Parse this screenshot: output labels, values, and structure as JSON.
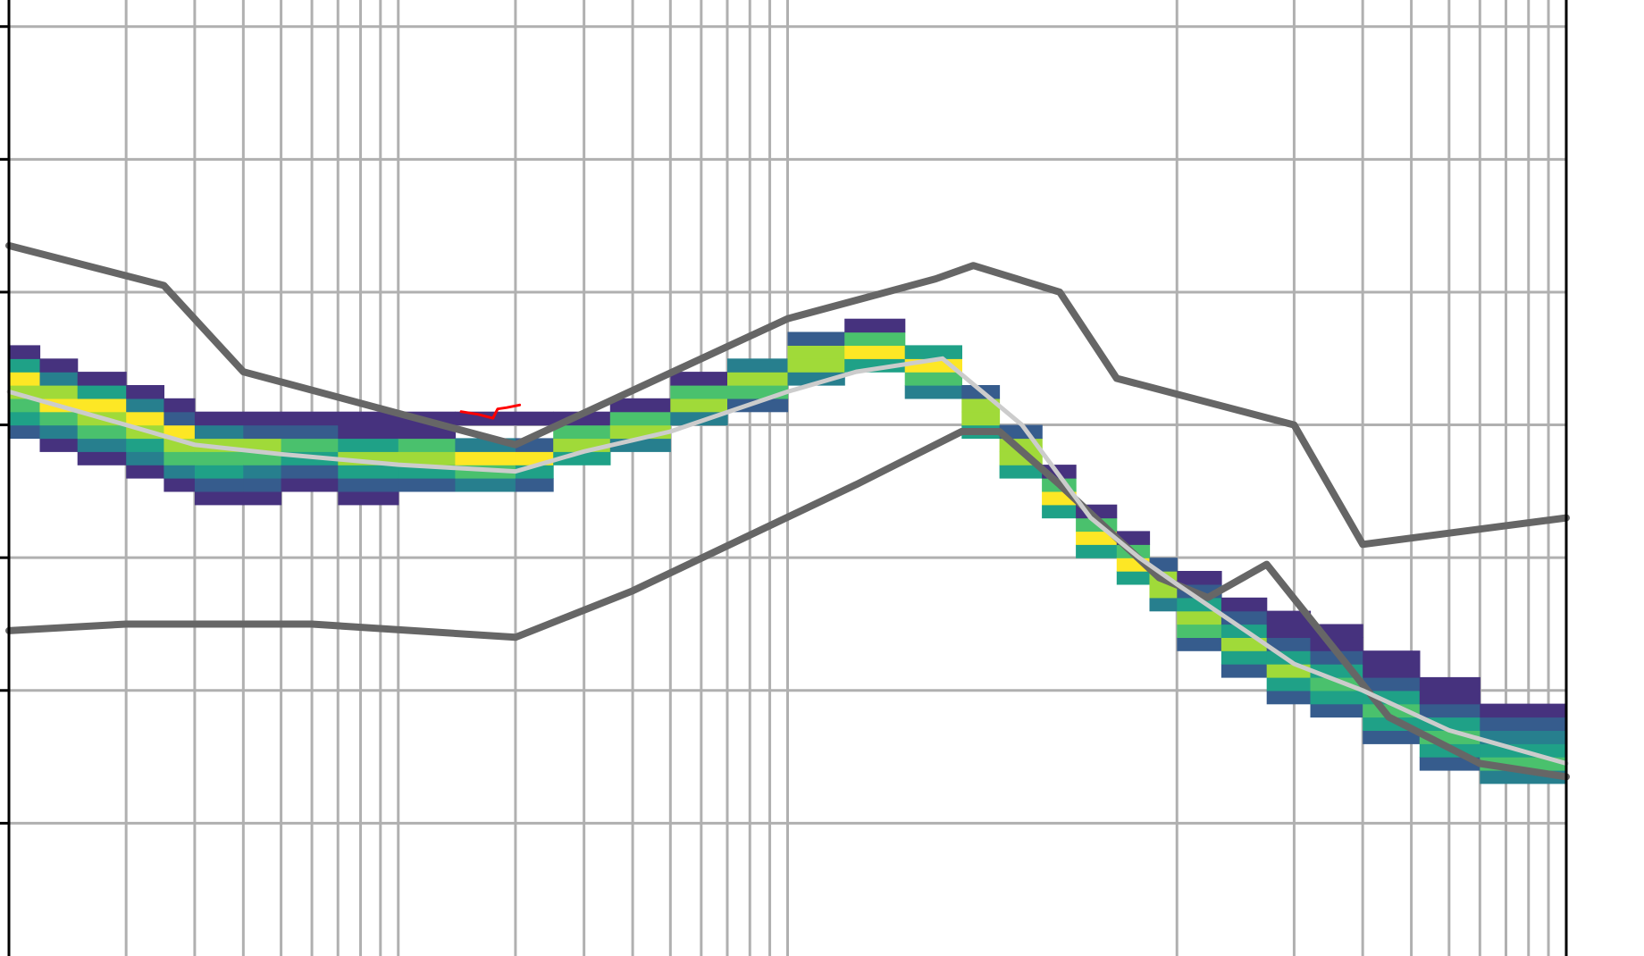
{
  "chart_data": {
    "type": "heatmap",
    "title": "",
    "xlabel": "",
    "ylabel": "",
    "x_scale": "log",
    "x_range": [
      0.1,
      1000
    ],
    "y_range": [
      0,
      7.2
    ],
    "x_major_ticks": [
      1,
      10,
      100
    ],
    "x_minor_ticks": [
      0.2,
      0.3,
      0.4,
      0.5,
      0.6,
      0.7,
      0.8,
      0.9,
      2,
      3,
      4,
      5,
      6,
      7,
      8,
      9,
      200,
      300,
      400,
      500,
      600,
      700,
      800,
      900
    ],
    "y_ticks": [
      1,
      2,
      3,
      4,
      5,
      6,
      7
    ],
    "grid": true,
    "legend": "none",
    "colors": {
      "grid": "#b0b0b0",
      "envelope": "#666666",
      "median": "#cccccc",
      "highlight": "#ff0000",
      "colormap": [
        "#440154",
        "#46327e",
        "#365c8d",
        "#277f8e",
        "#1fa187",
        "#4ac16d",
        "#a0da39",
        "#fde725"
      ]
    },
    "series": [
      {
        "role": "upper-envelope",
        "points": [
          [
            0.1,
            5.35
          ],
          [
            0.25,
            5.05
          ],
          [
            0.4,
            4.4
          ],
          [
            2.0,
            3.85
          ],
          [
            10,
            4.8
          ],
          [
            24,
            5.1
          ],
          [
            30,
            5.2
          ],
          [
            50,
            5.0
          ],
          [
            70,
            4.35
          ],
          [
            200,
            4.0
          ],
          [
            300,
            3.1
          ],
          [
            1000,
            3.3
          ]
        ]
      },
      {
        "role": "lower-envelope",
        "points": [
          [
            0.1,
            2.45
          ],
          [
            0.2,
            2.5
          ],
          [
            0.6,
            2.5
          ],
          [
            2.0,
            2.4
          ],
          [
            4.0,
            2.75
          ],
          [
            15,
            3.55
          ],
          [
            28,
            3.95
          ],
          [
            35,
            3.95
          ],
          [
            50,
            3.55
          ],
          [
            90,
            2.85
          ],
          [
            120,
            2.7
          ],
          [
            170,
            2.95
          ],
          [
            350,
            1.8
          ],
          [
            600,
            1.45
          ],
          [
            1000,
            1.35
          ]
        ]
      },
      {
        "role": "median",
        "points": [
          [
            0.1,
            4.25
          ],
          [
            0.2,
            4.0
          ],
          [
            0.3,
            3.85
          ],
          [
            0.5,
            3.78
          ],
          [
            1.0,
            3.7
          ],
          [
            2.0,
            3.65
          ],
          [
            3.0,
            3.8
          ],
          [
            5.0,
            3.95
          ],
          [
            10,
            4.25
          ],
          [
            15,
            4.4
          ],
          [
            25,
            4.5
          ],
          [
            40,
            4.0
          ],
          [
            60,
            3.3
          ],
          [
            80,
            3.0
          ],
          [
            100,
            2.8
          ],
          [
            150,
            2.45
          ],
          [
            200,
            2.2
          ],
          [
            300,
            2.0
          ],
          [
            500,
            1.7
          ],
          [
            1000,
            1.45
          ]
        ]
      },
      {
        "role": "highlight",
        "points": [
          [
            1.45,
            4.1
          ],
          [
            1.6,
            4.08
          ],
          [
            1.75,
            4.05
          ],
          [
            1.8,
            4.12
          ],
          [
            1.9,
            4.13
          ],
          [
            2.05,
            4.15
          ]
        ]
      }
    ],
    "density": {
      "rows_per_unit": 10,
      "columns": [
        {
          "x": [
            0.1,
            0.12
          ],
          "cells": [
            [
              3.9,
              2
            ],
            [
              4.0,
              4
            ],
            [
              4.1,
              5
            ],
            [
              4.2,
              6
            ],
            [
              4.3,
              7
            ],
            [
              4.4,
              4
            ],
            [
              4.5,
              1
            ]
          ]
        },
        {
          "x": [
            0.12,
            0.15
          ],
          "cells": [
            [
              3.8,
              1
            ],
            [
              3.9,
              3
            ],
            [
              4.0,
              5
            ],
            [
              4.1,
              7
            ],
            [
              4.2,
              6
            ],
            [
              4.3,
              3
            ],
            [
              4.4,
              1
            ]
          ]
        },
        {
          "x": [
            0.15,
            0.2
          ],
          "cells": [
            [
              3.7,
              1
            ],
            [
              3.8,
              3
            ],
            [
              3.9,
              5
            ],
            [
              4.0,
              6
            ],
            [
              4.1,
              7
            ],
            [
              4.2,
              4
            ],
            [
              4.3,
              1
            ]
          ]
        },
        {
          "x": [
            0.2,
            0.25
          ],
          "cells": [
            [
              3.6,
              1
            ],
            [
              3.7,
              3
            ],
            [
              3.8,
              4
            ],
            [
              3.9,
              6
            ],
            [
              4.0,
              7
            ],
            [
              4.1,
              3
            ],
            [
              4.2,
              1
            ]
          ]
        },
        {
          "x": [
            0.25,
            0.3
          ],
          "cells": [
            [
              3.5,
              1
            ],
            [
              3.6,
              3
            ],
            [
              3.7,
              5
            ],
            [
              3.8,
              6
            ],
            [
              3.9,
              7
            ],
            [
              4.0,
              2
            ],
            [
              4.1,
              1
            ]
          ]
        },
        {
          "x": [
            0.3,
            0.4
          ],
          "cells": [
            [
              3.4,
              1
            ],
            [
              3.5,
              2
            ],
            [
              3.6,
              4
            ],
            [
              3.7,
              5
            ],
            [
              3.8,
              6
            ],
            [
              3.9,
              3
            ],
            [
              4.0,
              1
            ]
          ]
        },
        {
          "x": [
            0.4,
            0.5
          ],
          "cells": [
            [
              3.4,
              1
            ],
            [
              3.5,
              2
            ],
            [
              3.6,
              3
            ],
            [
              3.7,
              5
            ],
            [
              3.8,
              6
            ],
            [
              3.9,
              2
            ],
            [
              4.0,
              1
            ]
          ]
        },
        {
          "x": [
            0.5,
            0.7
          ],
          "cells": [
            [
              3.5,
              1
            ],
            [
              3.6,
              2
            ],
            [
              3.7,
              4
            ],
            [
              3.8,
              5
            ],
            [
              3.9,
              2
            ],
            [
              4.0,
              1
            ]
          ]
        },
        {
          "x": [
            0.7,
            1.0
          ],
          "cells": [
            [
              3.4,
              1
            ],
            [
              3.5,
              2
            ],
            [
              3.6,
              4
            ],
            [
              3.7,
              6
            ],
            [
              3.8,
              4
            ],
            [
              3.9,
              1
            ],
            [
              4.0,
              1
            ]
          ]
        },
        {
          "x": [
            1.0,
            1.4
          ],
          "cells": [
            [
              3.5,
              2
            ],
            [
              3.6,
              4
            ],
            [
              3.7,
              6
            ],
            [
              3.8,
              5
            ],
            [
              3.9,
              1
            ],
            [
              4.0,
              1
            ]
          ]
        },
        {
          "x": [
            1.4,
            2.0
          ],
          "cells": [
            [
              3.5,
              3
            ],
            [
              3.6,
              5
            ],
            [
              3.7,
              7
            ],
            [
              3.8,
              3
            ],
            [
              4.0,
              1
            ]
          ]
        },
        {
          "x": [
            2.0,
            2.5
          ],
          "cells": [
            [
              3.5,
              2
            ],
            [
              3.6,
              4
            ],
            [
              3.7,
              7
            ],
            [
              3.8,
              2
            ],
            [
              4.0,
              1
            ]
          ]
        },
        {
          "x": [
            2.5,
            3.5
          ],
          "cells": [
            [
              3.7,
              4
            ],
            [
              3.8,
              6
            ],
            [
              3.9,
              5
            ],
            [
              4.0,
              1
            ]
          ]
        },
        {
          "x": [
            3.5,
            5.0
          ],
          "cells": [
            [
              3.8,
              3
            ],
            [
              3.9,
              6
            ],
            [
              4.0,
              5
            ],
            [
              4.1,
              1
            ]
          ]
        },
        {
          "x": [
            5.0,
            7.0
          ],
          "cells": [
            [
              4.0,
              3
            ],
            [
              4.1,
              6
            ],
            [
              4.2,
              5
            ],
            [
              4.3,
              1
            ]
          ]
        },
        {
          "x": [
            7.0,
            10
          ],
          "cells": [
            [
              4.1,
              2
            ],
            [
              4.2,
              5
            ],
            [
              4.3,
              6
            ],
            [
              4.4,
              3
            ]
          ]
        },
        {
          "x": [
            10,
            14
          ],
          "cells": [
            [
              4.3,
              3
            ],
            [
              4.4,
              6
            ],
            [
              4.5,
              6
            ],
            [
              4.6,
              2
            ]
          ]
        },
        {
          "x": [
            14,
            20
          ],
          "cells": [
            [
              4.4,
              4
            ],
            [
              4.5,
              7
            ],
            [
              4.6,
              5
            ],
            [
              4.7,
              1
            ]
          ]
        },
        {
          "x": [
            20,
            28
          ],
          "cells": [
            [
              4.2,
              3
            ],
            [
              4.3,
              5
            ],
            [
              4.4,
              7
            ],
            [
              4.5,
              4
            ]
          ]
        },
        {
          "x": [
            28,
            35
          ],
          "cells": [
            [
              3.9,
              4
            ],
            [
              4.0,
              6
            ],
            [
              4.1,
              6
            ],
            [
              4.2,
              2
            ]
          ]
        },
        {
          "x": [
            35,
            45
          ],
          "cells": [
            [
              3.6,
              4
            ],
            [
              3.7,
              6
            ],
            [
              3.8,
              6
            ],
            [
              3.9,
              2
            ]
          ]
        },
        {
          "x": [
            45,
            55
          ],
          "cells": [
            [
              3.3,
              4
            ],
            [
              3.4,
              7
            ],
            [
              3.5,
              5
            ],
            [
              3.6,
              1
            ]
          ]
        },
        {
          "x": [
            55,
            70
          ],
          "cells": [
            [
              3.0,
              4
            ],
            [
              3.1,
              7
            ],
            [
              3.2,
              5
            ],
            [
              3.3,
              1
            ]
          ]
        },
        {
          "x": [
            70,
            85
          ],
          "cells": [
            [
              2.8,
              4
            ],
            [
              2.9,
              7
            ],
            [
              3.0,
              5
            ],
            [
              3.1,
              1
            ]
          ]
        },
        {
          "x": [
            85,
            100
          ],
          "cells": [
            [
              2.6,
              3
            ],
            [
              2.7,
              6
            ],
            [
              2.8,
              6
            ],
            [
              2.9,
              2
            ]
          ]
        },
        {
          "x": [
            100,
            130
          ],
          "cells": [
            [
              2.3,
              2
            ],
            [
              2.4,
              5
            ],
            [
              2.5,
              6
            ],
            [
              2.6,
              4
            ],
            [
              2.7,
              2
            ],
            [
              2.8,
              1
            ]
          ]
        },
        {
          "x": [
            130,
            170
          ],
          "cells": [
            [
              2.1,
              2
            ],
            [
              2.2,
              4
            ],
            [
              2.3,
              6
            ],
            [
              2.4,
              4
            ],
            [
              2.5,
              2
            ],
            [
              2.6,
              1
            ]
          ]
        },
        {
          "x": [
            170,
            220
          ],
          "cells": [
            [
              1.9,
              2
            ],
            [
              2.0,
              4
            ],
            [
              2.1,
              6
            ],
            [
              2.2,
              4
            ],
            [
              2.3,
              2
            ],
            [
              2.4,
              1
            ],
            [
              2.5,
              1
            ]
          ]
        },
        {
          "x": [
            220,
            300
          ],
          "cells": [
            [
              1.8,
              2
            ],
            [
              1.9,
              4
            ],
            [
              2.0,
              5
            ],
            [
              2.1,
              4
            ],
            [
              2.2,
              2
            ],
            [
              2.3,
              1
            ],
            [
              2.4,
              1
            ]
          ]
        },
        {
          "x": [
            300,
            420
          ],
          "cells": [
            [
              1.6,
              2
            ],
            [
              1.7,
              4
            ],
            [
              1.8,
              5
            ],
            [
              1.9,
              4
            ],
            [
              2.0,
              2
            ],
            [
              2.1,
              1
            ],
            [
              2.2,
              1
            ]
          ]
        },
        {
          "x": [
            420,
            600
          ],
          "cells": [
            [
              1.4,
              2
            ],
            [
              1.5,
              4
            ],
            [
              1.6,
              5
            ],
            [
              1.7,
              4
            ],
            [
              1.8,
              2
            ],
            [
              1.9,
              1
            ],
            [
              2.0,
              1
            ]
          ]
        },
        {
          "x": [
            600,
            1000
          ],
          "cells": [
            [
              1.3,
              3
            ],
            [
              1.4,
              5
            ],
            [
              1.5,
              4
            ],
            [
              1.6,
              3
            ],
            [
              1.7,
              2
            ],
            [
              1.8,
              1
            ]
          ]
        }
      ]
    }
  }
}
